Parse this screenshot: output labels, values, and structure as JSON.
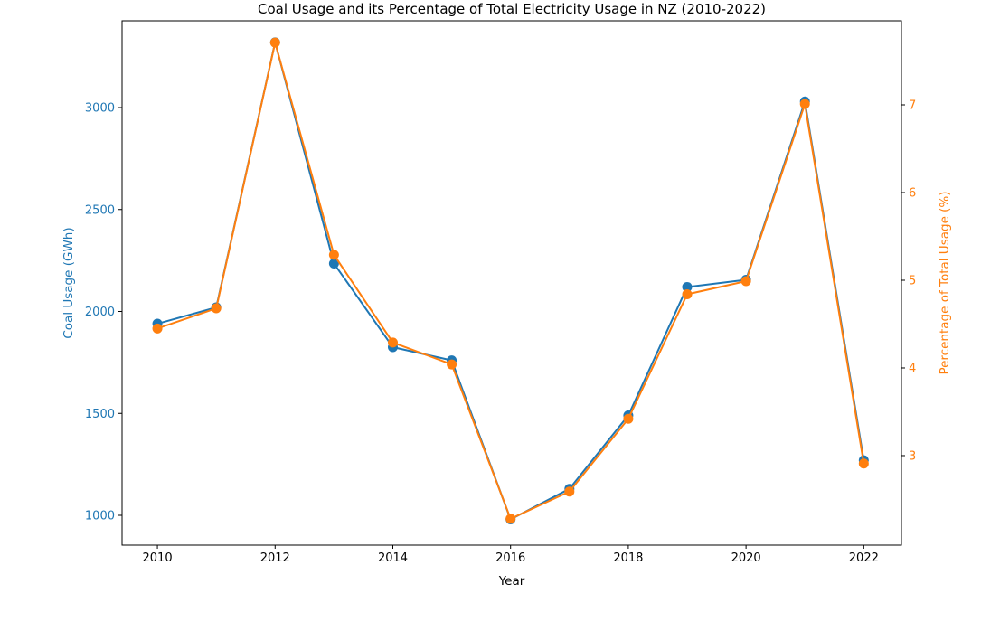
{
  "figure": {
    "background_color": "#ffffff"
  },
  "chart_data": {
    "type": "line",
    "title": "Coal Usage and its Percentage of Total Electricity Usage in NZ (2010-2022)",
    "xlabel": "Year",
    "ylabel_left": "Coal Usage (GWh)",
    "ylabel_right": "Percentage of Total Usage (%)",
    "x": [
      2010,
      2011,
      2012,
      2013,
      2014,
      2015,
      2016,
      2017,
      2018,
      2019,
      2020,
      2021,
      2022
    ],
    "series": [
      {
        "name": "Coal Usage (GWh)",
        "axis": "left",
        "color": "#1f77b4",
        "marker": "circle",
        "values": [
          1940,
          2020,
          3320,
          2235,
          1825,
          1760,
          980,
          1130,
          1490,
          2120,
          2155,
          3030,
          1270
        ]
      },
      {
        "name": "Percentage of Total Usage (%)",
        "axis": "right",
        "color": "#ff7f0e",
        "marker": "circle",
        "values": [
          4.45,
          4.68,
          7.71,
          5.29,
          4.29,
          4.04,
          2.28,
          2.59,
          3.42,
          4.84,
          4.99,
          7.01,
          2.91
        ]
      }
    ],
    "xticks": [
      2010,
      2012,
      2014,
      2016,
      2018,
      2020,
      2022
    ],
    "yticks_left": [
      1000,
      1500,
      2000,
      2500,
      3000
    ],
    "yticks_right": [
      3,
      4,
      5,
      6,
      7
    ],
    "xlim": [
      2009.4,
      2022.64
    ],
    "ylim_left": [
      853.7,
      3425.7
    ],
    "ylim_right": [
      1.979,
      7.959
    ],
    "grid": false,
    "legend_position": "none",
    "tick_label_color_left": "#1f77b4",
    "tick_label_color_right": "#ff7f0e",
    "tick_label_color_x": "#000000"
  }
}
